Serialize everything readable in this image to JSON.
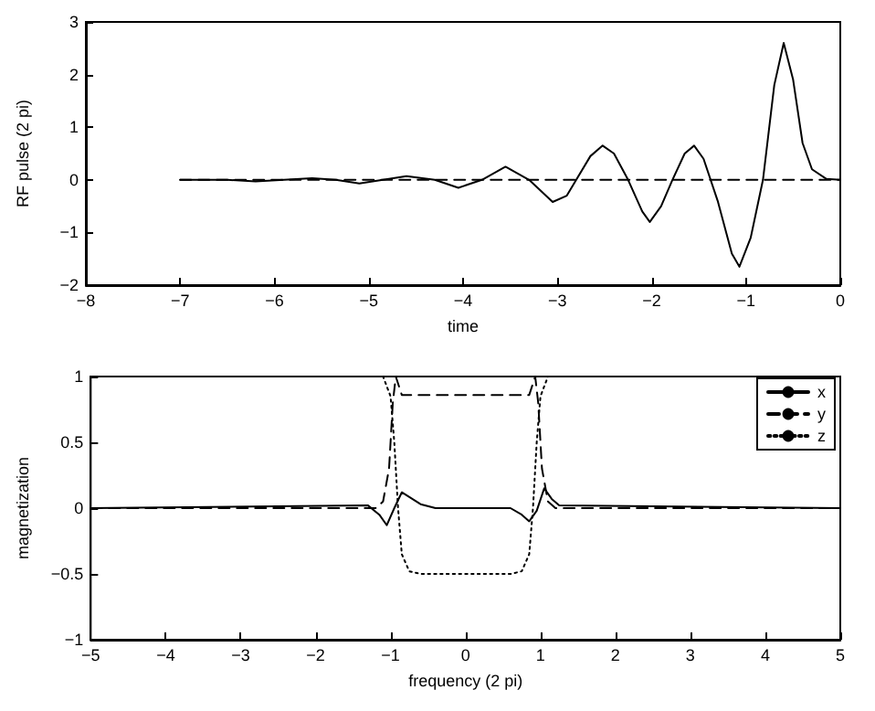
{
  "chart_data": [
    {
      "type": "line",
      "xlabel": "time",
      "ylabel": "RF pulse (2 pi)",
      "xlim": [
        -8,
        0
      ],
      "ylim": [
        -2,
        3
      ],
      "xticks": [
        -8,
        -7,
        -6,
        -5,
        -4,
        -3,
        -2,
        -1,
        0
      ],
      "yticks": [
        -2,
        -1,
        0,
        1,
        2,
        3
      ],
      "grid": false,
      "legend": false,
      "marker": "none",
      "series": [
        {
          "color": "#000000",
          "line_style": "solid",
          "x": [
            -7,
            -6.5,
            -6.2,
            -5.9,
            -5.6,
            -5.35,
            -5.1,
            -4.85,
            -4.6,
            -4.3,
            -4.05,
            -3.8,
            -3.55,
            -3.3,
            -3.05,
            -2.9,
            -2.8,
            -2.65,
            -2.52,
            -2.4,
            -2.25,
            -2.1,
            -2.02,
            -1.9,
            -1.78,
            -1.65,
            -1.55,
            -1.45,
            -1.3,
            -1.15,
            -1.07,
            -0.95,
            -0.82,
            -0.7,
            -0.6,
            -0.5,
            -0.4,
            -0.3,
            -0.15,
            0
          ],
          "values": [
            0,
            0,
            -0.03,
            0,
            0.03,
            0,
            -0.07,
            0,
            0.07,
            0,
            -0.15,
            0,
            0.25,
            0,
            -0.42,
            -0.3,
            0,
            0.45,
            0.65,
            0.5,
            0,
            -0.6,
            -0.8,
            -0.5,
            0,
            0.5,
            0.65,
            0.4,
            -0.4,
            -1.4,
            -1.65,
            -1.1,
            0,
            1.8,
            2.6,
            1.9,
            0.7,
            0.2,
            0.02,
            0
          ]
        },
        {
          "color": "#000000",
          "line_style": "dashed",
          "x": [
            -7,
            0
          ],
          "values": [
            0,
            0
          ]
        }
      ]
    },
    {
      "type": "line",
      "xlabel": "frequency (2 pi)",
      "ylabel": "magnetization",
      "xlim": [
        -5,
        5
      ],
      "ylim": [
        -1,
        1
      ],
      "xticks": [
        -5,
        -4,
        -3,
        -2,
        -1,
        0,
        1,
        2,
        3,
        4,
        5
      ],
      "yticks": [
        -1,
        -0.5,
        0,
        0.5,
        1
      ],
      "grid": false,
      "legend": "top right",
      "marker": "none",
      "series": [
        {
          "name": "x",
          "color": "#000000",
          "line_style": "solid",
          "x": [
            -5,
            -1.3,
            -1.15,
            -1.05,
            -0.95,
            -0.85,
            -0.6,
            -0.4,
            0.6,
            0.75,
            0.85,
            0.95,
            1.05,
            1.15,
            1.25,
            5
          ],
          "values": [
            0,
            0.02,
            -0.05,
            -0.13,
            0,
            0.12,
            0.03,
            0,
            0,
            -0.05,
            -0.1,
            -0.02,
            0.15,
            0.07,
            0.02,
            0
          ]
        },
        {
          "name": "y",
          "color": "#000000",
          "line_style": "dashed",
          "x": [
            -5,
            -1.2,
            -1.1,
            -1.02,
            -0.97,
            -0.93,
            -0.85,
            0.85,
            0.93,
            0.97,
            1.02,
            1.1,
            1.2,
            5
          ],
          "values": [
            0,
            0,
            0.05,
            0.3,
            0.8,
            1,
            0.86,
            0.86,
            1,
            0.8,
            0.3,
            0.05,
            0,
            0
          ]
        },
        {
          "name": "z",
          "color": "#000000",
          "line_style": "dotted",
          "x": [
            -5,
            -1.1,
            -1.0,
            -0.95,
            -0.9,
            -0.85,
            -0.75,
            -0.6,
            0.6,
            0.75,
            0.85,
            0.9,
            0.95,
            1.0,
            1.1,
            5
          ],
          "values": [
            1,
            1,
            0.85,
            0.5,
            0,
            -0.35,
            -0.48,
            -0.5,
            -0.5,
            -0.48,
            -0.35,
            0,
            0.5,
            0.85,
            1,
            1
          ]
        }
      ]
    }
  ]
}
